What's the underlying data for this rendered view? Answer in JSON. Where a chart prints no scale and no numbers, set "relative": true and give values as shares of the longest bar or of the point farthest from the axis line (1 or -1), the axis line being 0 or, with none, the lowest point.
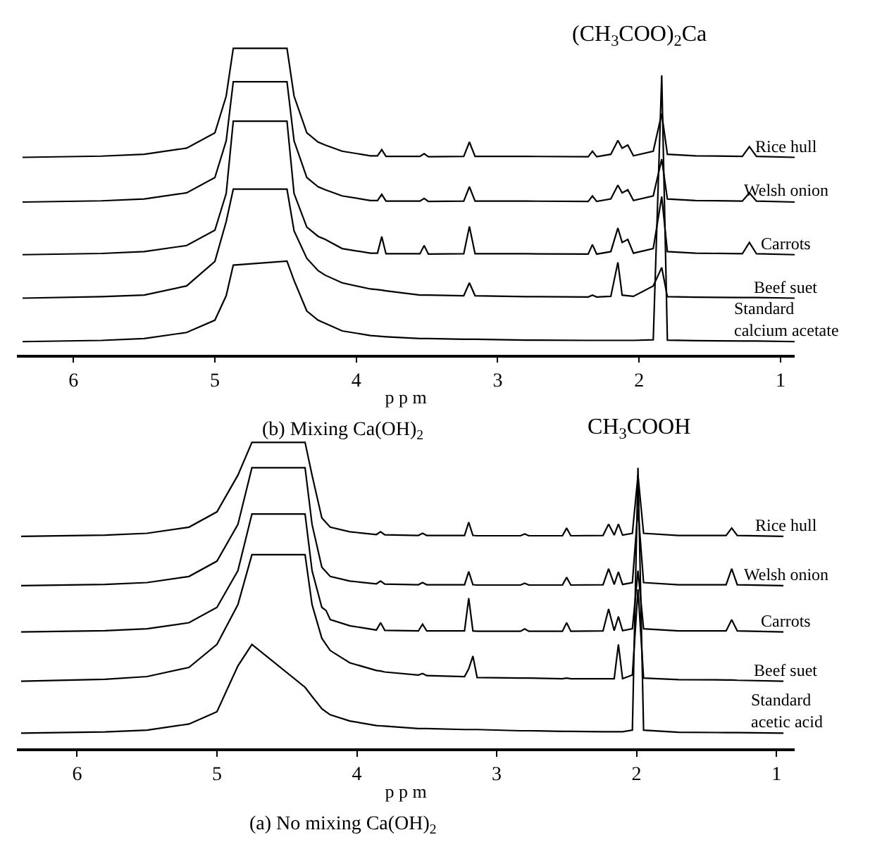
{
  "chart_data": [
    {
      "type": "line",
      "relative": true,
      "title": "(b) Mixing Ca(OH)$_{2}$",
      "xlabel": "p p m",
      "xlim": [
        6.4,
        0.9
      ],
      "xticks": [
        6,
        5,
        4,
        3,
        2,
        1
      ],
      "annotations": [
        "(CH$_{3}$COO)$_{2}$Ca"
      ],
      "x": [
        6.36,
        5.8,
        5.5,
        5.2,
        5.0,
        4.92,
        4.87,
        4.49,
        4.44,
        4.35,
        4.27,
        4.22,
        4.1,
        3.9,
        3.85,
        3.82,
        3.79,
        3.55,
        3.52,
        3.49,
        3.24,
        3.2,
        3.16,
        2.8,
        2.36,
        2.33,
        2.3,
        2.2,
        2.15,
        2.12,
        2.08,
        2.04,
        1.9,
        1.84,
        1.8,
        1.6,
        1.27,
        1.22,
        1.17,
        0.9
      ],
      "series": [
        {
          "name": "Rice hull",
          "color": "#000000",
          "values": [
            0.644,
            0.648,
            0.654,
            0.674,
            0.724,
            0.844,
            1.0,
            1.0,
            0.844,
            0.724,
            0.694,
            0.684,
            0.664,
            0.649,
            0.649,
            0.669,
            0.647,
            0.647,
            0.656,
            0.646,
            0.647,
            0.694,
            0.647,
            0.647,
            0.646,
            0.664,
            0.646,
            0.654,
            0.699,
            0.674,
            0.684,
            0.649,
            0.664,
            0.787,
            0.654,
            0.649,
            0.647,
            0.679,
            0.647,
            0.644
          ]
        },
        {
          "name": "Welsh onion",
          "color": "#000000",
          "values": [
            0.498,
            0.502,
            0.508,
            0.528,
            0.578,
            0.698,
            0.891,
            0.891,
            0.698,
            0.578,
            0.548,
            0.538,
            0.518,
            0.503,
            0.503,
            0.523,
            0.501,
            0.501,
            0.51,
            0.5,
            0.501,
            0.548,
            0.501,
            0.501,
            0.5,
            0.518,
            0.5,
            0.508,
            0.553,
            0.528,
            0.538,
            0.503,
            0.518,
            0.638,
            0.508,
            0.503,
            0.501,
            0.528,
            0.501,
            0.498
          ]
        },
        {
          "name": "Carrots",
          "color": "#000000",
          "values": [
            0.326,
            0.33,
            0.336,
            0.356,
            0.406,
            0.526,
            0.762,
            0.762,
            0.526,
            0.416,
            0.386,
            0.376,
            0.346,
            0.331,
            0.331,
            0.385,
            0.329,
            0.329,
            0.356,
            0.328,
            0.329,
            0.418,
            0.329,
            0.329,
            0.328,
            0.359,
            0.328,
            0.336,
            0.413,
            0.366,
            0.376,
            0.331,
            0.346,
            0.516,
            0.336,
            0.331,
            0.329,
            0.366,
            0.329,
            0.326
          ]
        },
        {
          "name": "Beef suet",
          "color": "#000000",
          "values": [
            0.184,
            0.189,
            0.194,
            0.224,
            0.304,
            0.434,
            0.54,
            0.54,
            0.404,
            0.314,
            0.274,
            0.259,
            0.234,
            0.214,
            0.212,
            0.21,
            0.208,
            0.194,
            0.194,
            0.194,
            0.192,
            0.234,
            0.192,
            0.189,
            0.188,
            0.194,
            0.188,
            0.19,
            0.301,
            0.194,
            0.192,
            0.19,
            0.224,
            0.284,
            0.189,
            0.187,
            0.186,
            0.186,
            0.186,
            0.184
          ]
        },
        {
          "name": "Standard\ncalcium acetate",
          "color": "#000000",
          "values": [
            0.042,
            0.046,
            0.052,
            0.072,
            0.112,
            0.192,
            0.292,
            0.305,
            0.242,
            0.142,
            0.112,
            0.102,
            0.077,
            0.062,
            0.06,
            0.059,
            0.058,
            0.052,
            0.052,
            0.052,
            0.05,
            0.05,
            0.05,
            0.047,
            0.046,
            0.046,
            0.046,
            0.046,
            0.046,
            0.046,
            0.046,
            0.046,
            0.048,
            0.912,
            0.047,
            0.045,
            0.044,
            0.044,
            0.044,
            0.042
          ]
        }
      ]
    },
    {
      "type": "line",
      "relative": true,
      "title": "(a) No mixing Ca(OH)$_{2}$",
      "xlabel": "p p m",
      "xlim": [
        6.43,
        0.87
      ],
      "xticks": [
        6,
        5,
        4,
        3,
        2,
        1
      ],
      "annotations": [
        "CH$_{3}$COOH"
      ],
      "x": [
        6.4,
        5.8,
        5.5,
        5.2,
        5.0,
        4.85,
        4.75,
        4.37,
        4.32,
        4.25,
        4.22,
        4.19,
        4.05,
        3.86,
        3.83,
        3.8,
        3.56,
        3.53,
        3.5,
        3.23,
        3.2,
        3.17,
        3.14,
        2.83,
        2.8,
        2.77,
        2.53,
        2.5,
        2.47,
        2.24,
        2.2,
        2.16,
        2.13,
        2.1,
        2.03,
        1.99,
        1.95,
        1.7,
        1.36,
        1.32,
        1.28,
        0.95
      ],
      "series": [
        {
          "name": "Rice hull",
          "color": "#000000",
          "values": [
            0.693,
            0.697,
            0.703,
            0.723,
            0.773,
            0.893,
            1.0,
            1.0,
            0.893,
            0.753,
            0.738,
            0.723,
            0.708,
            0.699,
            0.708,
            0.698,
            0.696,
            0.703,
            0.696,
            0.696,
            0.739,
            0.696,
            0.695,
            0.695,
            0.701,
            0.695,
            0.695,
            0.72,
            0.695,
            0.696,
            0.733,
            0.697,
            0.733,
            0.697,
            0.703,
            0.893,
            0.703,
            0.696,
            0.696,
            0.72,
            0.696,
            0.693
          ]
        },
        {
          "name": "Welsh onion",
          "color": "#000000",
          "values": [
            0.532,
            0.536,
            0.542,
            0.562,
            0.612,
            0.732,
            0.917,
            0.917,
            0.732,
            0.592,
            0.577,
            0.562,
            0.547,
            0.538,
            0.547,
            0.537,
            0.535,
            0.542,
            0.535,
            0.535,
            0.578,
            0.535,
            0.534,
            0.534,
            0.54,
            0.534,
            0.534,
            0.559,
            0.534,
            0.535,
            0.587,
            0.536,
            0.577,
            0.536,
            0.542,
            0.782,
            0.542,
            0.535,
            0.535,
            0.587,
            0.535,
            0.532
          ]
        },
        {
          "name": "Carrots",
          "color": "#000000",
          "values": [
            0.381,
            0.385,
            0.391,
            0.411,
            0.461,
            0.581,
            0.766,
            0.766,
            0.581,
            0.461,
            0.451,
            0.421,
            0.401,
            0.387,
            0.411,
            0.386,
            0.384,
            0.406,
            0.384,
            0.384,
            0.491,
            0.384,
            0.383,
            0.383,
            0.391,
            0.383,
            0.383,
            0.411,
            0.383,
            0.384,
            0.456,
            0.385,
            0.431,
            0.385,
            0.391,
            0.581,
            0.391,
            0.384,
            0.384,
            0.421,
            0.384,
            0.381
          ]
        },
        {
          "name": "Beef suet",
          "color": "#000000",
          "values": [
            0.22,
            0.226,
            0.235,
            0.265,
            0.34,
            0.47,
            0.633,
            0.633,
            0.47,
            0.36,
            0.34,
            0.32,
            0.28,
            0.255,
            0.253,
            0.25,
            0.24,
            0.245,
            0.238,
            0.235,
            0.26,
            0.302,
            0.232,
            0.23,
            0.23,
            0.23,
            0.228,
            0.23,
            0.228,
            0.228,
            0.228,
            0.228,
            0.34,
            0.228,
            0.24,
            0.52,
            0.23,
            0.225,
            0.224,
            0.224,
            0.223,
            0.22
          ]
        },
        {
          "name": "Standard\nacetic acid",
          "color": "#000000",
          "values": [
            0.05,
            0.054,
            0.06,
            0.08,
            0.12,
            0.27,
            0.34,
            0.2,
            0.17,
            0.13,
            0.12,
            0.11,
            0.09,
            0.075,
            0.074,
            0.073,
            0.065,
            0.065,
            0.065,
            0.062,
            0.062,
            0.062,
            0.062,
            0.058,
            0.058,
            0.058,
            0.056,
            0.056,
            0.056,
            0.055,
            0.055,
            0.055,
            0.055,
            0.055,
            0.06,
            0.917,
            0.06,
            0.053,
            0.052,
            0.052,
            0.052,
            0.05
          ]
        }
      ]
    }
  ]
}
